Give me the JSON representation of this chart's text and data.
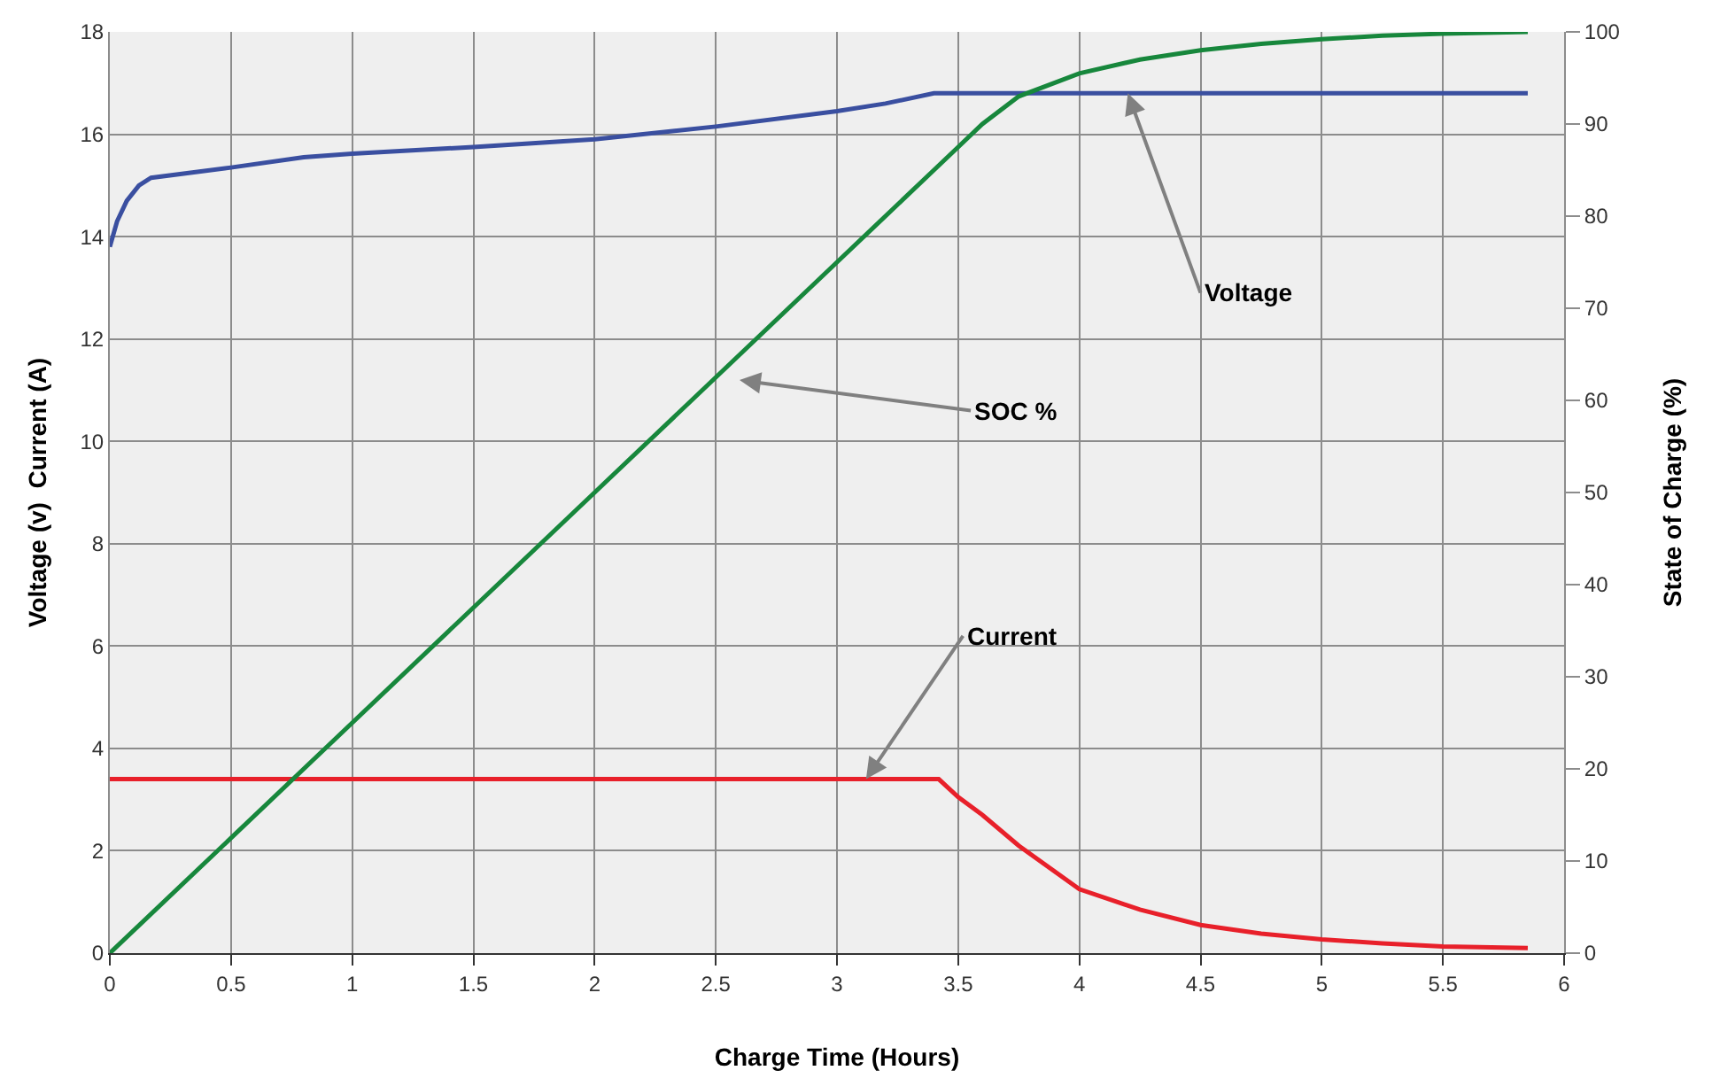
{
  "chart_data": {
    "type": "line",
    "xlabel": "Charge Time (Hours)",
    "ylabel": "Voltage (v)  Current (A)",
    "y2label": "State of Charge (%)",
    "xlim": [
      0,
      6
    ],
    "xticks": [
      0,
      0.5,
      1,
      1.5,
      2,
      2.5,
      3,
      3.5,
      4,
      4.5,
      5,
      5.5,
      6
    ],
    "ylim": [
      0,
      18
    ],
    "yticks": [
      0,
      2,
      4,
      6,
      8,
      10,
      12,
      14,
      16,
      18
    ],
    "y2lim": [
      0,
      100
    ],
    "y2ticks": [
      0,
      10,
      20,
      30,
      40,
      50,
      60,
      70,
      80,
      90,
      100
    ],
    "grid": true,
    "marker": "none",
    "line_style": "solid",
    "series": [
      {
        "color": "#3a4fa0",
        "x": [
          0,
          0.03,
          0.07,
          0.12,
          0.17,
          0.5,
          0.8,
          1,
          1.5,
          2,
          2.5,
          3,
          3.2,
          3.4,
          3.5,
          4,
          5,
          5.85
        ],
        "values": [
          13.8,
          14.3,
          14.7,
          15.0,
          15.15,
          15.35,
          15.55,
          15.62,
          15.75,
          15.9,
          16.15,
          16.45,
          16.6,
          16.8,
          16.8,
          16.8,
          16.8,
          16.8
        ]
      },
      {
        "color": "#17873c",
        "axis": "y2",
        "x": [
          0,
          1,
          2,
          3,
          3.4,
          3.5,
          3.6,
          3.75,
          4,
          4.25,
          4.5,
          4.75,
          5,
          5.25,
          5.5,
          5.85
        ],
        "values": [
          0,
          25,
          50,
          75,
          85,
          87.5,
          90,
          93,
          95.5,
          97,
          98,
          98.7,
          99.2,
          99.6,
          99.8,
          100
        ]
      },
      {
        "color": "#e8202a",
        "x": [
          0,
          1,
          2,
          3,
          3.42,
          3.5,
          3.6,
          3.75,
          4,
          4.25,
          4.5,
          4.75,
          5,
          5.25,
          5.5,
          5.85
        ],
        "values": [
          3.4,
          3.4,
          3.4,
          3.4,
          3.4,
          3.05,
          2.7,
          2.1,
          1.25,
          0.85,
          0.55,
          0.38,
          0.27,
          0.19,
          0.13,
          0.1
        ]
      }
    ],
    "annotations": [
      {
        "text": "Voltage",
        "x": 4.2,
        "y": 16.8
      },
      "SOC %",
      {
        "text": "Current",
        "x": 3.12,
        "y": 3.4
      }
    ]
  }
}
